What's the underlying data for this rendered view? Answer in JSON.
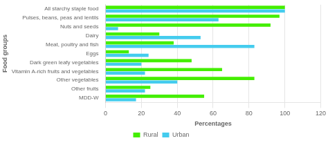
{
  "chart_data": {
    "type": "bar",
    "orientation": "horizontal",
    "categories": [
      "All starchy staple food",
      "Pulses, beans, peas and lentils",
      "Nuts and seeds",
      "Dairy",
      "Meat, poultry and fish",
      "Eggs",
      "Dark green leafy vegetables",
      "Vitamin A-rich fruits and vegetables",
      "Other vegetables",
      "Other fruits",
      "MDD-W"
    ],
    "series": [
      {
        "name": "Rural",
        "color": "#44ee00",
        "values": [
          100,
          97,
          92,
          30,
          38,
          13,
          48,
          65,
          83,
          25,
          55
        ]
      },
      {
        "name": "Urban",
        "color": "#44ccee",
        "values": [
          100,
          63,
          7,
          53,
          83,
          24,
          20,
          22,
          40,
          22,
          17
        ]
      }
    ],
    "xlabel": "Percentages",
    "ylabel": "Food groups",
    "xlim": [
      0,
      120
    ],
    "xticks": [
      0,
      20,
      40,
      60,
      80,
      100,
      120
    ],
    "grid": true,
    "legend": "bottom"
  }
}
